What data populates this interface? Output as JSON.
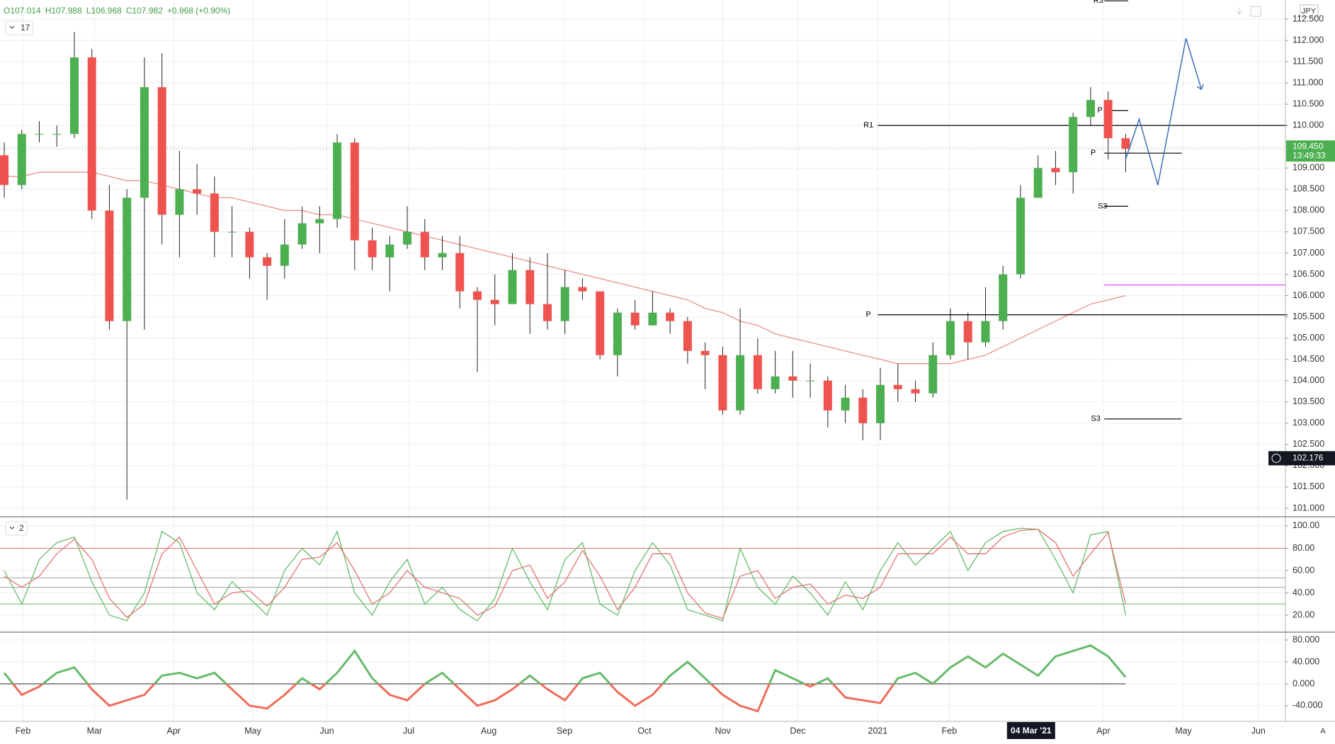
{
  "chart_data": [
    {
      "type": "candlestick",
      "legend_items": [
        "O107.014",
        "H107.988",
        "L106.968",
        "C107.982",
        "+0.968 (+0.90%)"
      ],
      "interval_label": "17",
      "currency": "JPY",
      "open": [
        109.3,
        108.6,
        109.8,
        109.8,
        109.8,
        111.6,
        108.0,
        105.4,
        108.3,
        110.9,
        107.9,
        108.5,
        108.4,
        107.5,
        107.5,
        106.9,
        106.7,
        107.2,
        107.7,
        107.8,
        109.6,
        107.3,
        106.9,
        107.2,
        107.5,
        106.9,
        107.0,
        106.1,
        105.9,
        105.8,
        106.6,
        105.8,
        105.4,
        106.2,
        106.1,
        104.6,
        105.6,
        105.3,
        105.6,
        105.4,
        104.7,
        104.6,
        103.3,
        104.6,
        103.8,
        104.1,
        104.0,
        104.0,
        103.3,
        103.6,
        103.0,
        103.9,
        103.8,
        103.7,
        104.6,
        105.4,
        104.9,
        105.4,
        106.5,
        108.3,
        109.0,
        108.9,
        110.2,
        110.6,
        109.7
      ],
      "high": [
        109.6,
        109.9,
        110.1,
        110.0,
        112.2,
        111.8,
        108.6,
        108.5,
        111.6,
        111.7,
        109.4,
        109.1,
        108.8,
        108.1,
        107.6,
        107.0,
        107.8,
        108.1,
        108.1,
        109.8,
        109.7,
        107.6,
        107.4,
        108.1,
        107.8,
        107.4,
        107.4,
        106.2,
        106.5,
        107.0,
        106.9,
        107.0,
        106.6,
        106.4,
        106.1,
        105.7,
        105.9,
        106.1,
        105.7,
        105.5,
        104.9,
        104.8,
        105.7,
        105.0,
        104.7,
        104.7,
        104.4,
        104.1,
        103.9,
        103.8,
        104.3,
        104.4,
        104.0,
        104.9,
        105.7,
        105.6,
        106.2,
        106.7,
        108.6,
        109.3,
        109.4,
        110.3,
        110.9,
        110.8,
        109.8
      ],
      "low": [
        108.3,
        108.5,
        109.6,
        109.5,
        109.7,
        107.8,
        105.2,
        101.2,
        105.2,
        107.2,
        106.9,
        107.9,
        106.9,
        106.9,
        106.4,
        105.9,
        106.4,
        107.1,
        107.0,
        107.6,
        106.6,
        106.6,
        106.1,
        107.1,
        106.6,
        106.6,
        105.7,
        104.2,
        105.3,
        105.8,
        105.1,
        105.2,
        105.1,
        105.9,
        104.5,
        104.1,
        105.2,
        105.3,
        105.1,
        104.4,
        103.8,
        103.2,
        103.2,
        103.7,
        103.7,
        103.6,
        103.6,
        102.9,
        103.0,
        102.6,
        102.6,
        103.5,
        103.5,
        103.6,
        104.5,
        104.5,
        104.8,
        105.2,
        106.4,
        108.3,
        108.6,
        108.4,
        110.0,
        109.2,
        108.9
      ],
      "close": [
        108.6,
        109.8,
        109.8,
        109.8,
        111.6,
        108.0,
        105.4,
        108.3,
        110.9,
        107.9,
        108.5,
        108.4,
        107.5,
        107.5,
        106.9,
        106.7,
        107.2,
        107.7,
        107.8,
        109.6,
        107.3,
        106.9,
        107.2,
        107.5,
        106.9,
        107.0,
        106.1,
        105.9,
        105.8,
        106.6,
        105.8,
        105.4,
        106.2,
        106.1,
        104.6,
        105.6,
        105.3,
        105.6,
        105.4,
        104.7,
        104.6,
        103.3,
        104.6,
        103.8,
        104.1,
        104.0,
        104.0,
        103.3,
        103.6,
        103.0,
        103.9,
        103.8,
        103.7,
        104.6,
        105.4,
        104.9,
        105.4,
        106.5,
        108.3,
        109.0,
        108.9,
        110.2,
        110.6,
        109.7,
        109.45
      ],
      "up_color": "#4caf50",
      "down_color": "#ef5350",
      "series": [
        {
          "color": "#e57373",
          "values": [
            108.8,
            108.8,
            108.9,
            108.9,
            108.9,
            108.9,
            108.8,
            108.7,
            108.7,
            108.6,
            108.5,
            108.4,
            108.3,
            108.3,
            108.2,
            108.1,
            108.0,
            108.0,
            107.9,
            107.9,
            107.8,
            107.7,
            107.6,
            107.5,
            107.4,
            107.3,
            107.2,
            107.1,
            107.0,
            106.9,
            106.8,
            106.7,
            106.6,
            106.5,
            106.4,
            106.3,
            106.2,
            106.1,
            106.0,
            105.9,
            105.7,
            105.6,
            105.4,
            105.3,
            105.1,
            105.0,
            104.9,
            104.8,
            104.7,
            104.6,
            104.5,
            104.4,
            104.4,
            104.4,
            104.4,
            104.5,
            104.6,
            104.8,
            105.0,
            105.2,
            105.4,
            105.6,
            105.8,
            105.9,
            106.0
          ]
        }
      ],
      "levels": [
        {
          "label": "R3",
          "value": 112.93,
          "color": "#000000"
        },
        {
          "label": "R1",
          "value": 110.0,
          "color": "#000000"
        },
        {
          "label": "P",
          "value": 105.55,
          "color": "#000000"
        },
        {
          "label": "P",
          "value": 110.35,
          "color": "#000000"
        },
        {
          "label": "P",
          "value": 109.35,
          "color": "#000000"
        },
        {
          "label": "S3",
          "value": 108.1,
          "color": "#000000"
        },
        {
          "label": "S3",
          "value": 103.1,
          "color": "#000000"
        },
        {
          "value": 106.25,
          "color": "#e040fb"
        }
      ],
      "projection": {
        "color": "#3f6fb5",
        "values": [
          109.2,
          110.15,
          108.6,
          112.05,
          110.85
        ]
      },
      "last_price": {
        "value": 109.45,
        "label": "109.450"
      },
      "countdown": "13:49:33",
      "cursor_price": {
        "value": 102.176,
        "label": "102.176"
      },
      "ylim": [
        100.8,
        112.95
      ],
      "yticks": [
        {
          "value": 101,
          "label": "101.000"
        },
        {
          "value": 101.5,
          "label": "101.500"
        },
        {
          "value": 102,
          "label": "102.000"
        },
        {
          "value": 102.5,
          "label": "102.500"
        },
        {
          "value": 103,
          "label": "103.000"
        },
        {
          "value": 103.5,
          "label": "103.500"
        },
        {
          "value": 104,
          "label": "104.000"
        },
        {
          "value": 104.5,
          "label": "104.500"
        },
        {
          "value": 105,
          "label": "105.000"
        },
        {
          "value": 105.5,
          "label": "105.500"
        },
        {
          "value": 106,
          "label": "106.000"
        },
        {
          "value": 106.5,
          "label": "106.500"
        },
        {
          "value": 107,
          "label": "107.000"
        },
        {
          "value": 107.5,
          "label": "107.500"
        },
        {
          "value": 108,
          "label": "108.000"
        },
        {
          "value": 108.5,
          "label": "108.500"
        },
        {
          "value": 109,
          "label": "109.000"
        },
        {
          "value": 109.5,
          "label": "109.500"
        },
        {
          "value": 110,
          "label": "110.000"
        },
        {
          "value": 110.5,
          "label": "110.500"
        },
        {
          "value": 111,
          "label": "111.000"
        },
        {
          "value": 111.5,
          "label": "111.500"
        },
        {
          "value": 112,
          "label": "112.000"
        },
        {
          "value": 112.5,
          "label": "112.500"
        }
      ],
      "grid": true
    },
    {
      "type": "line",
      "pane_label": "2",
      "series": [
        {
          "color": "#66bb6a",
          "values": [
            60,
            30,
            70,
            85,
            90,
            50,
            20,
            15,
            40,
            95,
            85,
            40,
            25,
            50,
            35,
            20,
            60,
            80,
            65,
            95,
            40,
            20,
            50,
            70,
            30,
            45,
            25,
            15,
            35,
            80,
            50,
            25,
            70,
            85,
            30,
            20,
            60,
            85,
            65,
            25,
            20,
            15,
            80,
            45,
            30,
            55,
            40,
            20,
            50,
            25,
            60,
            85,
            65,
            80,
            95,
            60,
            85,
            95,
            98,
            97,
            70,
            40,
            92,
            95,
            20
          ]
        },
        {
          "color": "#e57373",
          "values": [
            55,
            45,
            55,
            75,
            88,
            70,
            35,
            18,
            30,
            75,
            90,
            60,
            30,
            40,
            42,
            28,
            45,
            70,
            72,
            85,
            60,
            30,
            40,
            60,
            45,
            40,
            35,
            20,
            28,
            60,
            65,
            35,
            50,
            78,
            55,
            25,
            45,
            75,
            75,
            40,
            22,
            17,
            55,
            60,
            35,
            45,
            48,
            30,
            38,
            35,
            45,
            75,
            75,
            75,
            90,
            75,
            75,
            90,
            96,
            97,
            85,
            55,
            75,
            94,
            30
          ]
        }
      ],
      "bands": [
        {
          "value": 80,
          "color": "#e57373"
        },
        {
          "value": 53.5,
          "color": "#9e9e9e"
        },
        {
          "value": 45,
          "color": "#9e9e9e"
        },
        {
          "value": 30,
          "color": "#66bb6a"
        }
      ],
      "ylim": [
        4.8,
        108.2
      ],
      "yticks": [
        {
          "value": 20,
          "label": "20.00"
        },
        {
          "value": 40,
          "label": "40.00"
        },
        {
          "value": 60,
          "label": "60.00"
        },
        {
          "value": 80,
          "label": "80.00"
        },
        {
          "value": 100,
          "label": "100.00"
        }
      ],
      "grid": true
    },
    {
      "type": "momentum",
      "values": [
        20,
        -20,
        -5,
        20,
        30,
        -10,
        -40,
        -30,
        -20,
        15,
        20,
        10,
        20,
        -10,
        -40,
        -45,
        -20,
        10,
        -10,
        20,
        60,
        10,
        -20,
        -30,
        0,
        20,
        -10,
        -40,
        -30,
        -10,
        15,
        -10,
        -30,
        10,
        20,
        -15,
        -40,
        -20,
        15,
        40,
        10,
        -20,
        -40,
        -50,
        25,
        10,
        -5,
        10,
        -25,
        -30,
        -35,
        10,
        20,
        0,
        30,
        50,
        30,
        55,
        35,
        15,
        50,
        60,
        70,
        50,
        12
      ],
      "up_color": "#66bb6a",
      "down_color": "#ef6c5a",
      "ylim": [
        -68.5,
        94.3
      ],
      "yticks": [
        {
          "value": -40,
          "label": "-40.000"
        },
        {
          "value": 0,
          "label": "0.000"
        },
        {
          "value": 40,
          "label": "40.000"
        },
        {
          "value": 80,
          "label": "80.000"
        }
      ],
      "grid": true,
      "x_axis_labels": [
        "Feb",
        "Mar",
        "Apr",
        "May",
        "Jun",
        "Jul",
        "Aug",
        "Sep",
        "Oct",
        "Nov",
        "Dec",
        "2021",
        "Feb",
        "04 Mar '21",
        "Apr",
        "May",
        "Jun"
      ],
      "corner_label": "A"
    }
  ]
}
